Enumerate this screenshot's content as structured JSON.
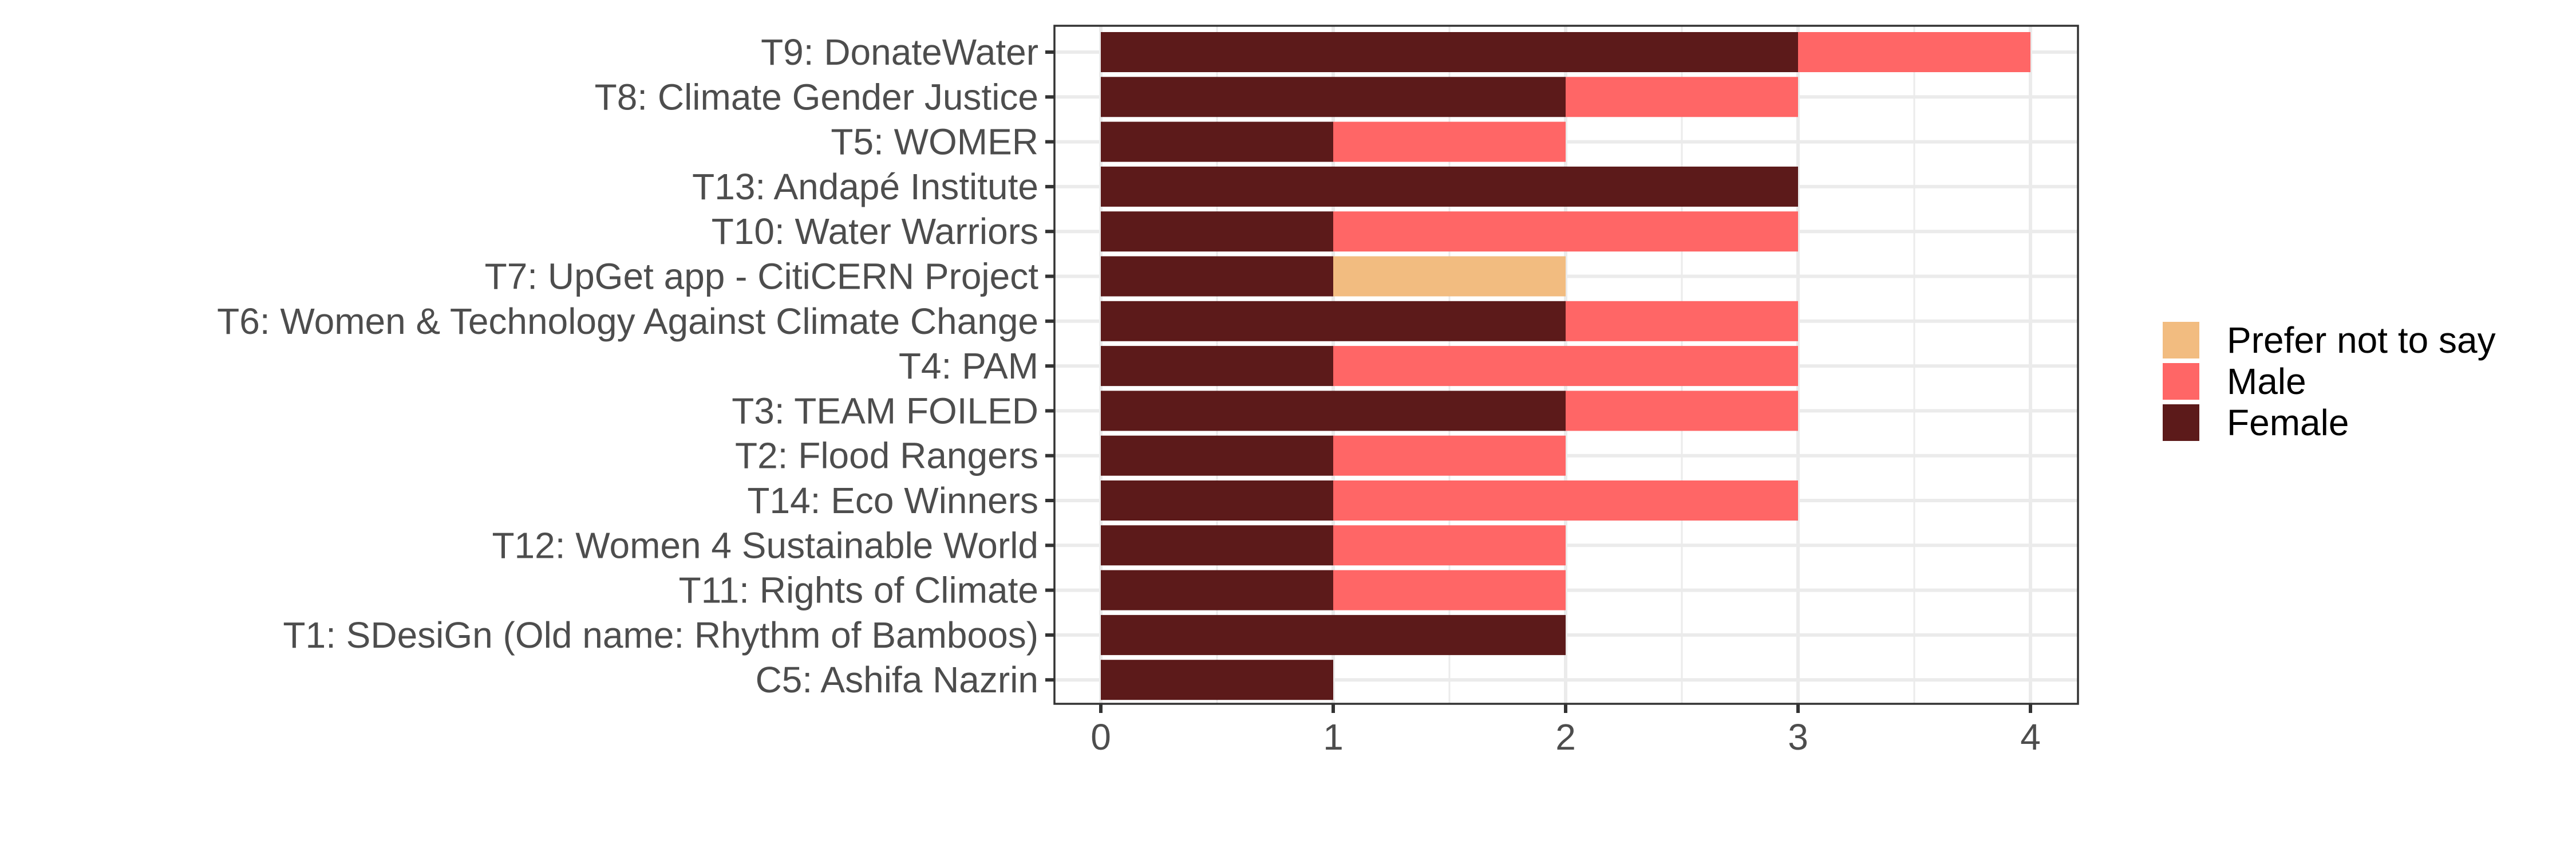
{
  "chart_data": {
    "type": "bar",
    "orientation": "horizontal",
    "stacked": true,
    "title": "",
    "xlabel": "",
    "ylabel": "",
    "categories": [
      "T9: DonateWater",
      "T8: Climate Gender Justice",
      "T5: WOMER",
      "T13: Andapé Institute",
      "T10: Water Warriors",
      "T7: UpGet app - CitiCERN Project",
      "T6: Women & Technology Against Climate Change",
      "T4: PAM",
      "T3: TEAM FOILED",
      "T2: Flood Rangers",
      "T14: Eco Winners",
      "T12: Women 4 Sustainable World",
      "T11: Rights of Climate",
      "T1: SDesiGn (Old name: Rhythm of Bamboos)",
      "C5: Ashifa Nazrin"
    ],
    "series": [
      {
        "name": "Female",
        "color": "#5c1a1a",
        "values": [
          3,
          2,
          1,
          3,
          1,
          1,
          2,
          1,
          2,
          1,
          1,
          1,
          1,
          2,
          1
        ]
      },
      {
        "name": "Male",
        "color": "#ff6666",
        "values": [
          1,
          1,
          1,
          0,
          2,
          0,
          1,
          2,
          1,
          1,
          2,
          1,
          1,
          0,
          0
        ]
      },
      {
        "name": "Prefer not to say",
        "color": "#f2bc80",
        "values": [
          0,
          0,
          0,
          0,
          0,
          1,
          0,
          0,
          0,
          0,
          0,
          0,
          0,
          0,
          0
        ]
      }
    ],
    "xlim": [
      0,
      4
    ],
    "xticks": [
      "0",
      "1",
      "2",
      "3",
      "4"
    ],
    "legend": {
      "placement": "right",
      "entries": [
        "Prefer not to say",
        "Male",
        "Female"
      ]
    },
    "grid": true
  }
}
